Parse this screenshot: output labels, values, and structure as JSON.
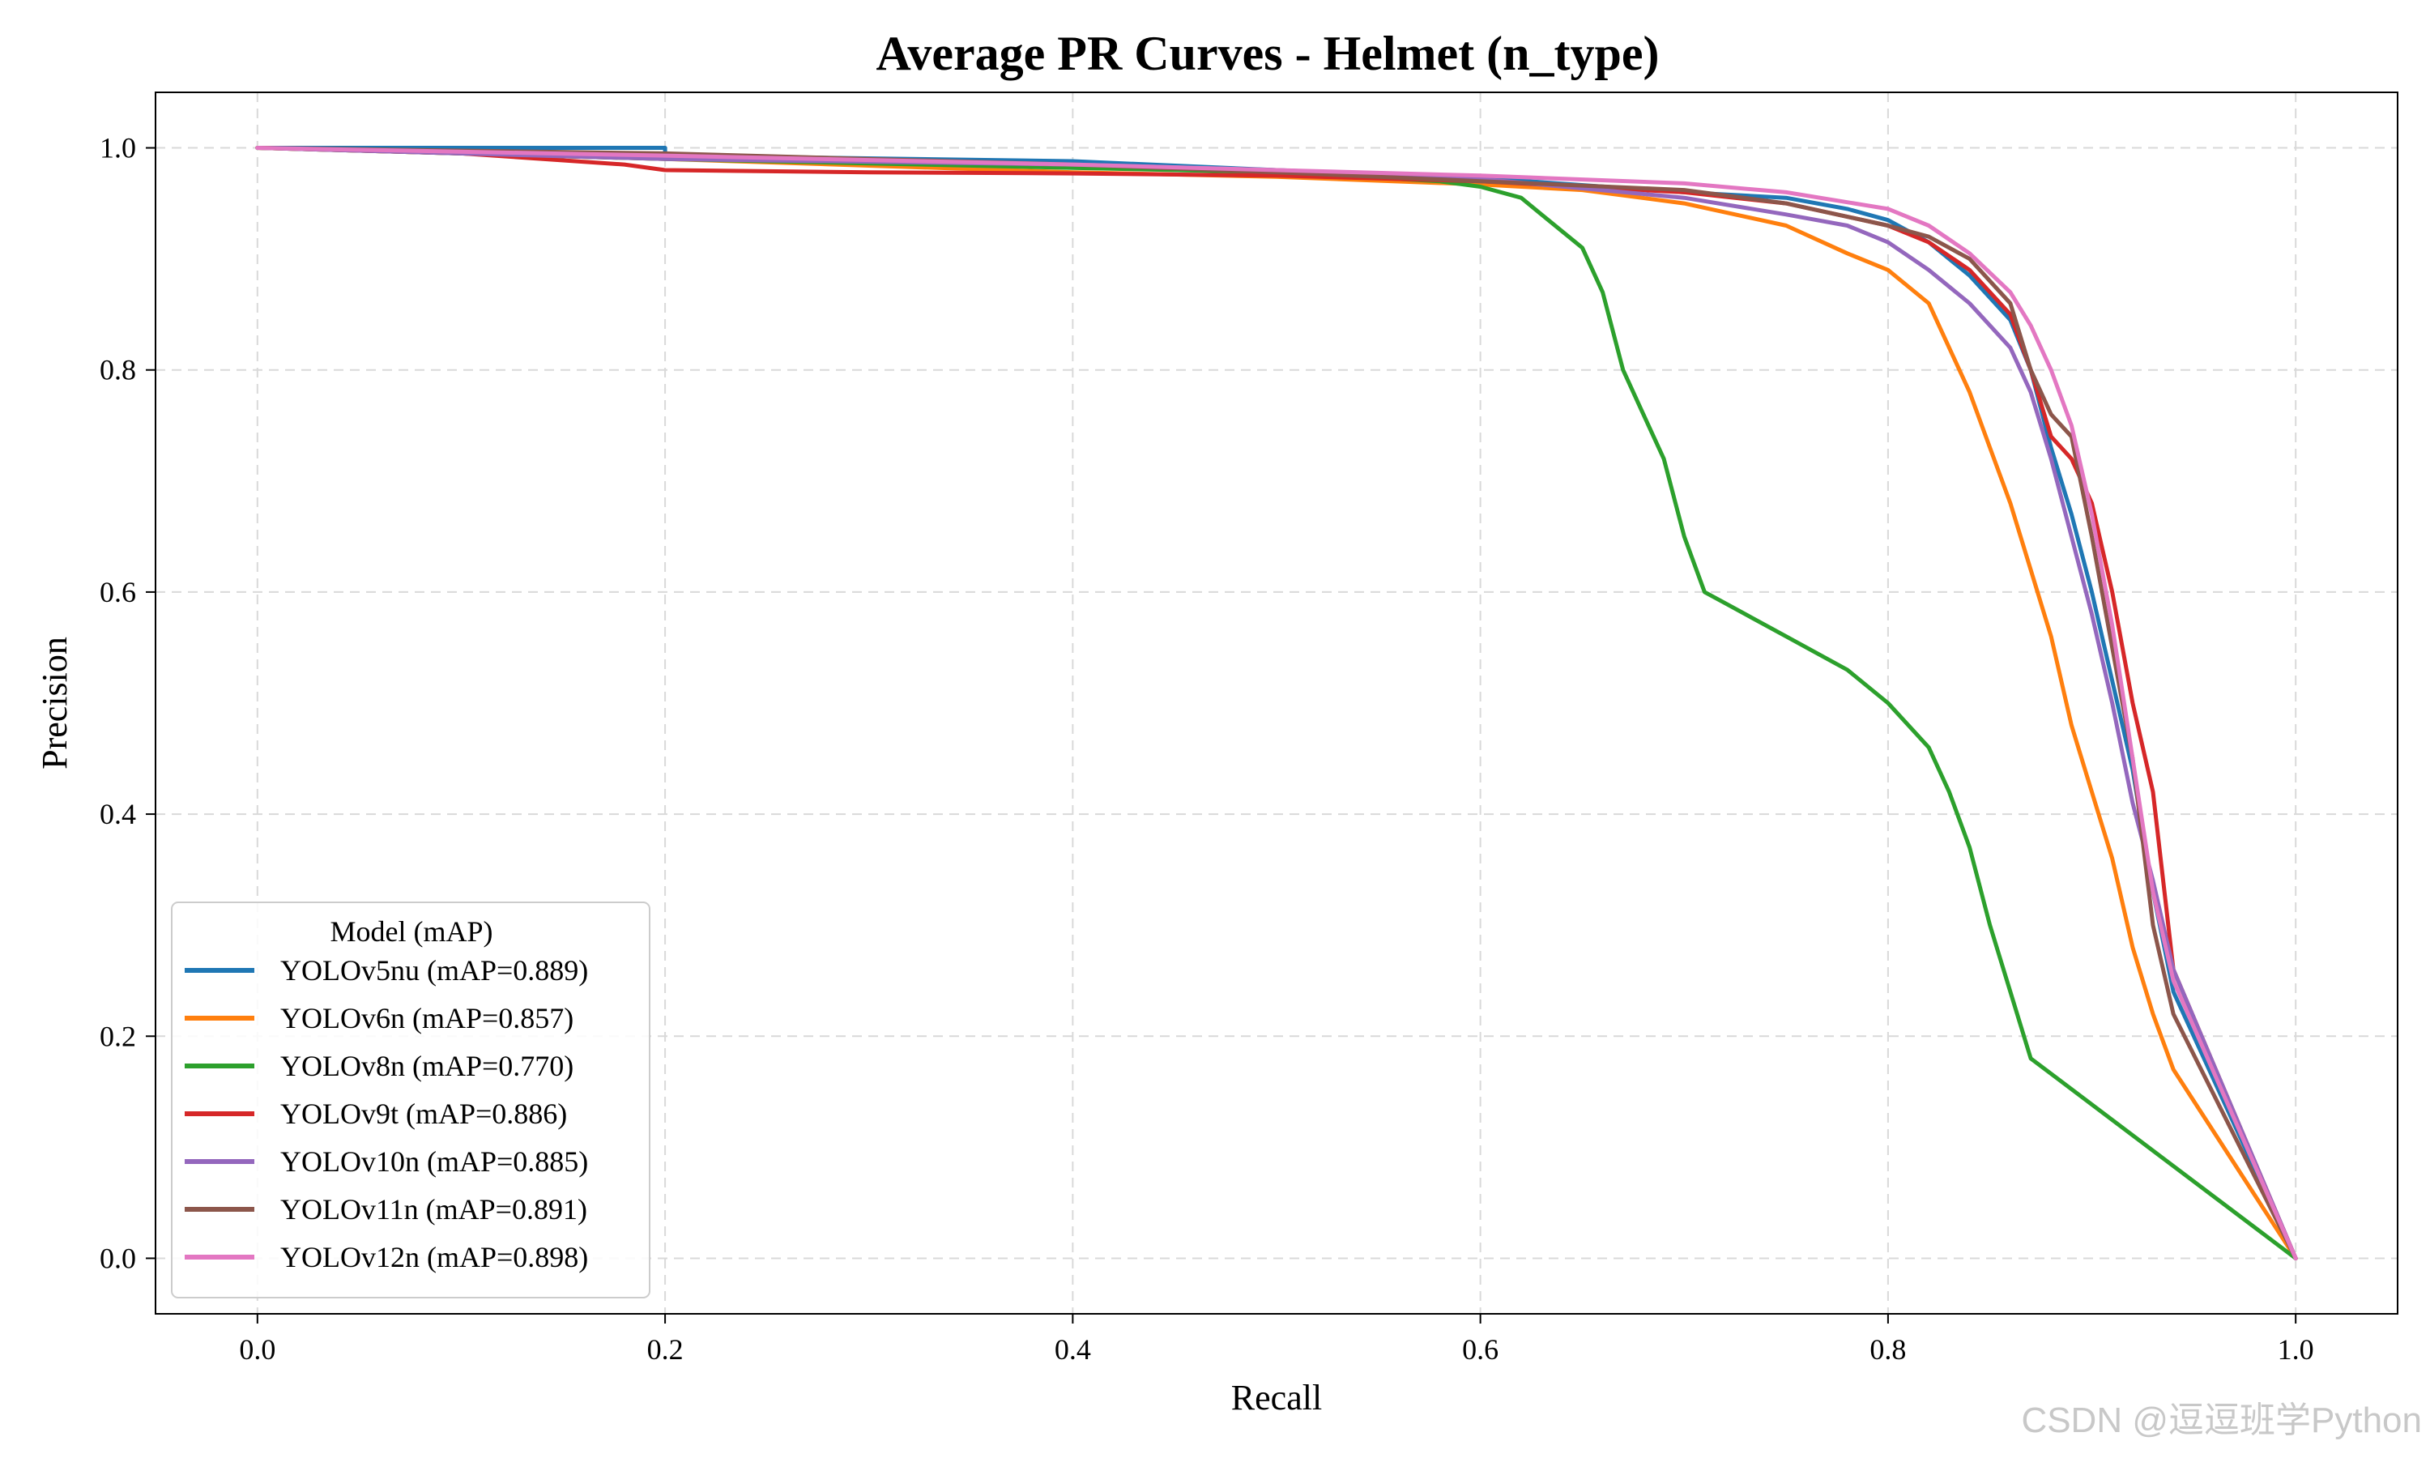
{
  "chart_data": {
    "type": "line",
    "title": "Average PR Curves - Helmet (n_type)",
    "xlabel": "Recall",
    "ylabel": "Precision",
    "xlim": [
      -0.05,
      1.05
    ],
    "ylim": [
      -0.05,
      1.05
    ],
    "xticks": [
      0.0,
      0.2,
      0.4,
      0.6,
      0.8,
      1.0
    ],
    "yticks": [
      0.0,
      0.2,
      0.4,
      0.6,
      0.8,
      1.0
    ],
    "xtick_labels": [
      "0.0",
      "0.2",
      "0.4",
      "0.6",
      "0.8",
      "1.0"
    ],
    "ytick_labels": [
      "0.0",
      "0.2",
      "0.4",
      "0.6",
      "0.8",
      "1.0"
    ],
    "grid": true,
    "legend_title": "Model (mAP)",
    "legend_position": "lower-left",
    "series": [
      {
        "name": "YOLOv5nu (mAP=0.889)",
        "color": "#1f77b4",
        "points": [
          [
            0,
            1.0
          ],
          [
            0.2,
            1.0
          ],
          [
            0.2,
            0.993
          ],
          [
            0.4,
            0.988
          ],
          [
            0.5,
            0.98
          ],
          [
            0.6,
            0.973
          ],
          [
            0.7,
            0.96
          ],
          [
            0.75,
            0.955
          ],
          [
            0.78,
            0.945
          ],
          [
            0.8,
            0.935
          ],
          [
            0.82,
            0.915
          ],
          [
            0.84,
            0.885
          ],
          [
            0.86,
            0.845
          ],
          [
            0.87,
            0.8
          ],
          [
            0.88,
            0.73
          ],
          [
            0.89,
            0.67
          ],
          [
            0.9,
            0.6
          ],
          [
            0.91,
            0.52
          ],
          [
            0.92,
            0.44
          ],
          [
            0.93,
            0.33
          ],
          [
            0.94,
            0.24
          ],
          [
            1.0,
            0.0
          ]
        ]
      },
      {
        "name": "YOLOv6n (mAP=0.857)",
        "color": "#ff7f0e",
        "points": [
          [
            0,
            1.0
          ],
          [
            0.2,
            0.99
          ],
          [
            0.4,
            0.978
          ],
          [
            0.5,
            0.974
          ],
          [
            0.6,
            0.967
          ],
          [
            0.65,
            0.962
          ],
          [
            0.7,
            0.95
          ],
          [
            0.75,
            0.93
          ],
          [
            0.78,
            0.905
          ],
          [
            0.8,
            0.89
          ],
          [
            0.82,
            0.86
          ],
          [
            0.83,
            0.82
          ],
          [
            0.84,
            0.78
          ],
          [
            0.85,
            0.73
          ],
          [
            0.86,
            0.68
          ],
          [
            0.87,
            0.62
          ],
          [
            0.88,
            0.56
          ],
          [
            0.89,
            0.48
          ],
          [
            0.9,
            0.42
          ],
          [
            0.91,
            0.36
          ],
          [
            0.92,
            0.28
          ],
          [
            0.93,
            0.22
          ],
          [
            0.94,
            0.17
          ],
          [
            1.0,
            0.0
          ]
        ]
      },
      {
        "name": "YOLOv8n (mAP=0.770)",
        "color": "#2ca02c",
        "points": [
          [
            0,
            1.0
          ],
          [
            0.2,
            0.99
          ],
          [
            0.4,
            0.982
          ],
          [
            0.5,
            0.978
          ],
          [
            0.58,
            0.97
          ],
          [
            0.6,
            0.965
          ],
          [
            0.62,
            0.955
          ],
          [
            0.63,
            0.94
          ],
          [
            0.65,
            0.91
          ],
          [
            0.66,
            0.87
          ],
          [
            0.67,
            0.8
          ],
          [
            0.68,
            0.76
          ],
          [
            0.69,
            0.72
          ],
          [
            0.7,
            0.65
          ],
          [
            0.71,
            0.6
          ],
          [
            0.72,
            0.59
          ],
          [
            0.75,
            0.56
          ],
          [
            0.78,
            0.53
          ],
          [
            0.8,
            0.5
          ],
          [
            0.82,
            0.46
          ],
          [
            0.83,
            0.42
          ],
          [
            0.84,
            0.37
          ],
          [
            0.85,
            0.3
          ],
          [
            0.86,
            0.24
          ],
          [
            0.87,
            0.18
          ],
          [
            1.0,
            0.0
          ]
        ]
      },
      {
        "name": "YOLOv9t (mAP=0.886)",
        "color": "#d62728",
        "points": [
          [
            0,
            1.0
          ],
          [
            0.1,
            0.995
          ],
          [
            0.18,
            0.985
          ],
          [
            0.2,
            0.98
          ],
          [
            0.3,
            0.978
          ],
          [
            0.4,
            0.977
          ],
          [
            0.5,
            0.975
          ],
          [
            0.6,
            0.97
          ],
          [
            0.7,
            0.96
          ],
          [
            0.75,
            0.95
          ],
          [
            0.8,
            0.93
          ],
          [
            0.82,
            0.915
          ],
          [
            0.84,
            0.89
          ],
          [
            0.86,
            0.85
          ],
          [
            0.87,
            0.8
          ],
          [
            0.88,
            0.74
          ],
          [
            0.89,
            0.72
          ],
          [
            0.9,
            0.68
          ],
          [
            0.91,
            0.6
          ],
          [
            0.92,
            0.5
          ],
          [
            0.93,
            0.42
          ],
          [
            0.94,
            0.26
          ],
          [
            1.0,
            0.0
          ]
        ]
      },
      {
        "name": "YOLOv10n (mAP=0.885)",
        "color": "#9467bd",
        "points": [
          [
            0,
            1.0
          ],
          [
            0.2,
            0.99
          ],
          [
            0.4,
            0.985
          ],
          [
            0.5,
            0.98
          ],
          [
            0.6,
            0.972
          ],
          [
            0.7,
            0.955
          ],
          [
            0.75,
            0.94
          ],
          [
            0.78,
            0.93
          ],
          [
            0.8,
            0.915
          ],
          [
            0.82,
            0.89
          ],
          [
            0.84,
            0.86
          ],
          [
            0.86,
            0.82
          ],
          [
            0.87,
            0.78
          ],
          [
            0.88,
            0.72
          ],
          [
            0.89,
            0.65
          ],
          [
            0.9,
            0.58
          ],
          [
            0.91,
            0.5
          ],
          [
            0.92,
            0.41
          ],
          [
            0.93,
            0.34
          ],
          [
            0.94,
            0.26
          ],
          [
            1.0,
            0.0
          ]
        ]
      },
      {
        "name": "YOLOv11n (mAP=0.891)",
        "color": "#8c564b",
        "points": [
          [
            0,
            1.0
          ],
          [
            0.2,
            0.995
          ],
          [
            0.4,
            0.985
          ],
          [
            0.5,
            0.978
          ],
          [
            0.6,
            0.97
          ],
          [
            0.7,
            0.962
          ],
          [
            0.75,
            0.95
          ],
          [
            0.8,
            0.93
          ],
          [
            0.82,
            0.92
          ],
          [
            0.84,
            0.9
          ],
          [
            0.86,
            0.86
          ],
          [
            0.87,
            0.8
          ],
          [
            0.88,
            0.76
          ],
          [
            0.89,
            0.74
          ],
          [
            0.9,
            0.65
          ],
          [
            0.91,
            0.55
          ],
          [
            0.92,
            0.45
          ],
          [
            0.93,
            0.3
          ],
          [
            0.94,
            0.22
          ],
          [
            1.0,
            0.0
          ]
        ]
      },
      {
        "name": "YOLOv12n (mAP=0.898)",
        "color": "#e377c2",
        "points": [
          [
            0,
            1.0
          ],
          [
            0.2,
            0.993
          ],
          [
            0.4,
            0.985
          ],
          [
            0.5,
            0.98
          ],
          [
            0.6,
            0.975
          ],
          [
            0.7,
            0.968
          ],
          [
            0.75,
            0.96
          ],
          [
            0.8,
            0.945
          ],
          [
            0.82,
            0.93
          ],
          [
            0.84,
            0.905
          ],
          [
            0.86,
            0.87
          ],
          [
            0.87,
            0.84
          ],
          [
            0.88,
            0.8
          ],
          [
            0.89,
            0.75
          ],
          [
            0.9,
            0.67
          ],
          [
            0.91,
            0.57
          ],
          [
            0.92,
            0.45
          ],
          [
            0.93,
            0.33
          ],
          [
            0.94,
            0.25
          ],
          [
            1.0,
            0.0
          ]
        ]
      }
    ]
  },
  "watermark": "CSDN @逗逗班学Python"
}
